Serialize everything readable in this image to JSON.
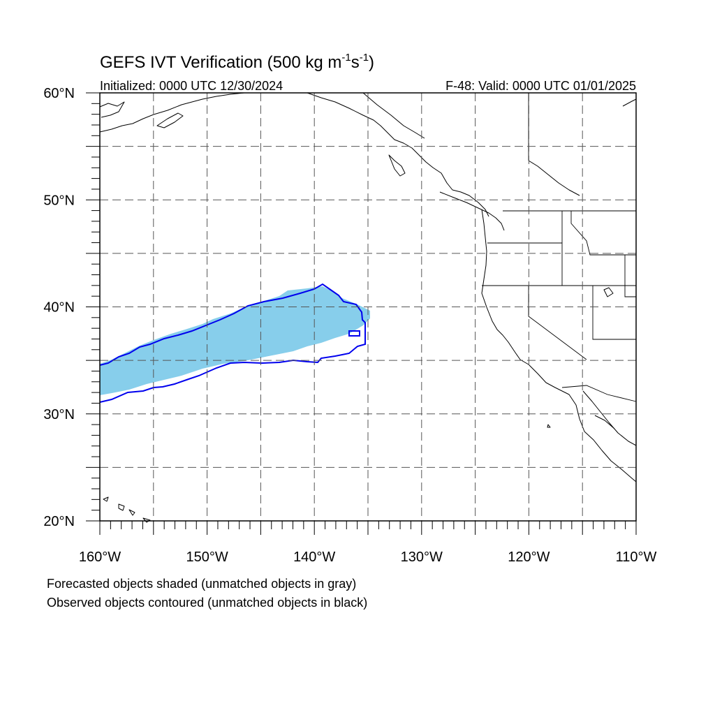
{
  "title_prefix": "GEFS IVT Verification (500 kg m",
  "title_exp1": "-1",
  "title_mid": "s",
  "title_exp2": "-1",
  "title_suffix": ")",
  "init_label": "Initialized: 0000 UTC 12/30/2024",
  "valid_label": "F-48: Valid: 0000 UTC 01/01/2025",
  "lon_labels": [
    "160°W",
    "150°W",
    "140°W",
    "130°W",
    "120°W",
    "110°W"
  ],
  "lat_labels": [
    "60°N",
    "50°N",
    "40°N",
    "30°N",
    "20°N"
  ],
  "legend": {
    "line1": "Forecasted objects shaded (unmatched objects in gray)",
    "line2": "Observed objects contoured (unmatched objects in black)"
  },
  "colors": {
    "forecast_fill": "#87ceeb",
    "observed_contour": "#0000ee",
    "coastline": "#000000"
  },
  "map": {
    "lon_range": [
      -160,
      -110
    ],
    "lat_range": [
      20,
      60
    ],
    "grid_spacing_deg": 5
  }
}
